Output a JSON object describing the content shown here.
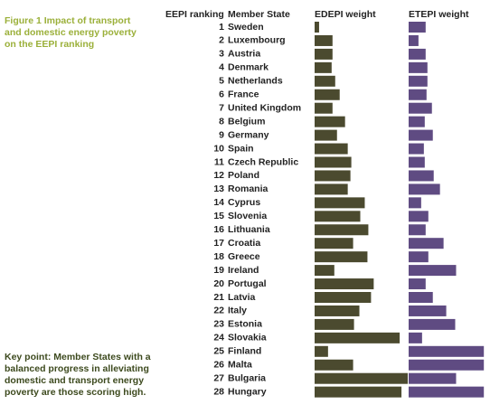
{
  "chart_data": {
    "type": "bar",
    "title": "Figure 1 Impact of  transport\n and domestic energy poverty\non the EEPI ranking",
    "note": "Key point: Member States with a\nbalanced progress in alleviating\ndomestic and transport energy\npoverty are those scoring high.",
    "rank_label": "EEPI ranking",
    "category_label": "Member State",
    "ranks": [
      1,
      2,
      3,
      4,
      5,
      6,
      7,
      8,
      9,
      10,
      11,
      12,
      13,
      14,
      15,
      16,
      17,
      18,
      19,
      20,
      21,
      22,
      23,
      24,
      25,
      26,
      27,
      28
    ],
    "categories": [
      "Sweden",
      "Luxembourg",
      "Austria",
      "Denmark",
      "Netherlands",
      "France",
      "United Kingdom",
      "Belgium",
      "Germany",
      "Spain",
      "Czech Republic",
      "Poland",
      "Romania",
      "Cyprus",
      "Slovenia",
      "Lithuania",
      "Croatia",
      "Greece",
      "Ireland",
      "Portugal",
      "Latvia",
      "Italy",
      "Estonia",
      "Slovakia",
      "Finland",
      "Malta",
      "Bulgaria",
      "Hungary"
    ],
    "xlim": [
      0,
      105
    ],
    "series": [
      {
        "name": "EDEPI weight",
        "color": "#4b4a2f",
        "values": [
          5,
          20,
          20,
          19,
          23,
          28,
          20,
          34,
          25,
          37,
          41,
          40,
          37,
          56,
          51,
          60,
          43,
          59,
          22,
          66,
          63,
          50,
          44,
          95,
          15,
          43,
          104,
          97
        ]
      },
      {
        "name": "ETEPI weight",
        "color": "#5f4b82",
        "values": [
          19,
          11,
          19,
          21,
          21,
          20,
          26,
          18,
          27,
          17,
          18,
          28,
          35,
          14,
          22,
          19,
          39,
          22,
          53,
          19,
          27,
          42,
          52,
          15,
          84,
          84,
          53,
          84
        ]
      }
    ]
  }
}
